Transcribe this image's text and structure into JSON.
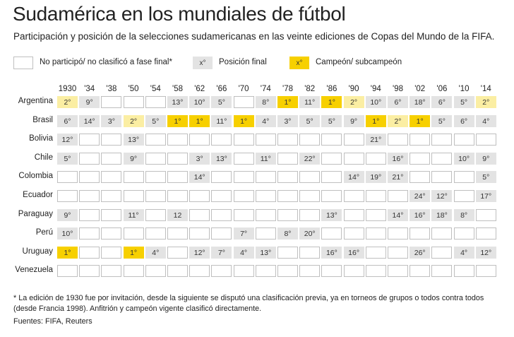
{
  "header": {
    "title": "Sudamérica en los mundiales de fútbol",
    "subtitle": "Participación y posición de la selecciones sudamericanas en las veinte ediciones de Copas del Mundo de la FIFA."
  },
  "legend": {
    "not_participated_label": "No participó/ no clasificó a fase final*",
    "position_sample": "x°",
    "position_label": "Posición final",
    "champion_sample": "x°",
    "champion_label": "Campeón/ subcampeón"
  },
  "colors": {
    "empty_border": "#bfbfbf",
    "position_fill": "#e3e3e3",
    "champion_fill": "#f7d000",
    "runner_up_fill": "#fbeea3"
  },
  "chart_data": {
    "type": "table",
    "years": [
      "1930",
      "'34",
      "'38",
      "'50",
      "'54",
      "'58",
      "'62",
      "'66",
      "'70",
      "'74",
      "'78",
      "'82",
      "'86",
      "'90",
      "'94",
      "'98",
      "'02",
      "'06",
      "'10",
      "'14"
    ],
    "rows": [
      {
        "country": "Argentina",
        "cells": [
          "2°",
          "9°",
          "",
          "",
          "",
          "13°",
          "10°",
          "5°",
          "",
          "8°",
          "1°",
          "11°",
          "1°",
          "2°",
          "10°",
          "6°",
          "18°",
          "6°",
          "5°",
          "2°"
        ]
      },
      {
        "country": "Brasil",
        "cells": [
          "6°",
          "14°",
          "3°",
          "2°",
          "5°",
          "1°",
          "1°",
          "11°",
          "1°",
          "4°",
          "3°",
          "5°",
          "5°",
          "9°",
          "1°",
          "2°",
          "1°",
          "5°",
          "6°",
          "4°"
        ]
      },
      {
        "country": "Bolivia",
        "cells": [
          "12°",
          "",
          "",
          "13°",
          "",
          "",
          "",
          "",
          "",
          "",
          "",
          "",
          "",
          "",
          "21°",
          "",
          "",
          "",
          "",
          ""
        ]
      },
      {
        "country": "Chile",
        "cells": [
          "5°",
          "",
          "",
          "9°",
          "",
          "",
          "3°",
          "13°",
          "",
          "11°",
          "",
          "22°",
          "",
          "",
          "",
          "16°",
          "",
          "",
          "10°",
          "9°"
        ]
      },
      {
        "country": "Colombia",
        "cells": [
          "",
          "",
          "",
          "",
          "",
          "",
          "14°",
          "",
          "",
          "",
          "",
          "",
          "",
          "14°",
          "19°",
          "21°",
          "",
          "",
          "",
          "5°"
        ]
      },
      {
        "country": "Ecuador",
        "cells": [
          "",
          "",
          "",
          "",
          "",
          "",
          "",
          "",
          "",
          "",
          "",
          "",
          "",
          "",
          "",
          "",
          "24°",
          "12°",
          "",
          "17°"
        ]
      },
      {
        "country": "Paraguay",
        "cells": [
          "9°",
          "",
          "",
          "11°",
          "",
          "12",
          "",
          "",
          "",
          "",
          "",
          "",
          "13°",
          "",
          "",
          "14°",
          "16°",
          "18°",
          "8°",
          ""
        ]
      },
      {
        "country": "Perú",
        "cells": [
          "10°",
          "",
          "",
          "",
          "",
          "",
          "",
          "",
          "7°",
          "",
          "8°",
          "20°",
          "",
          "",
          "",
          "",
          "",
          "",
          "",
          ""
        ]
      },
      {
        "country": "Uruguay",
        "cells": [
          "1°",
          "",
          "",
          "1°",
          "4°",
          "",
          "12°",
          "7°",
          "4°",
          "13°",
          "",
          "",
          "16°",
          "16°",
          "",
          "",
          "26°",
          "",
          "4°",
          "12°"
        ]
      },
      {
        "country": "Venezuela",
        "cells": [
          "",
          "",
          "",
          "",
          "",
          "",
          "",
          "",
          "",
          "",
          "",
          "",
          "",
          "",
          "",
          "",
          "",
          "",
          "",
          ""
        ]
      }
    ],
    "champion_cells": [
      [
        0,
        10
      ],
      [
        0,
        12
      ],
      [
        1,
        5
      ],
      [
        1,
        6
      ],
      [
        1,
        8
      ],
      [
        1,
        14
      ],
      [
        1,
        16
      ],
      [
        8,
        0
      ],
      [
        8,
        3
      ]
    ],
    "runner_up_cells": [
      [
        0,
        0
      ],
      [
        0,
        13
      ],
      [
        0,
        19
      ],
      [
        1,
        3
      ],
      [
        1,
        15
      ]
    ]
  },
  "footnote": "* La edición de 1930 fue por invitación, desde la siguiente se disputó una clasificación previa, ya en torneos de grupos o todos contra todos (desde Francia 1998). Anfitrión y campeón vigente clasificó directamente.",
  "source": "Fuentes: FIFA, Reuters"
}
